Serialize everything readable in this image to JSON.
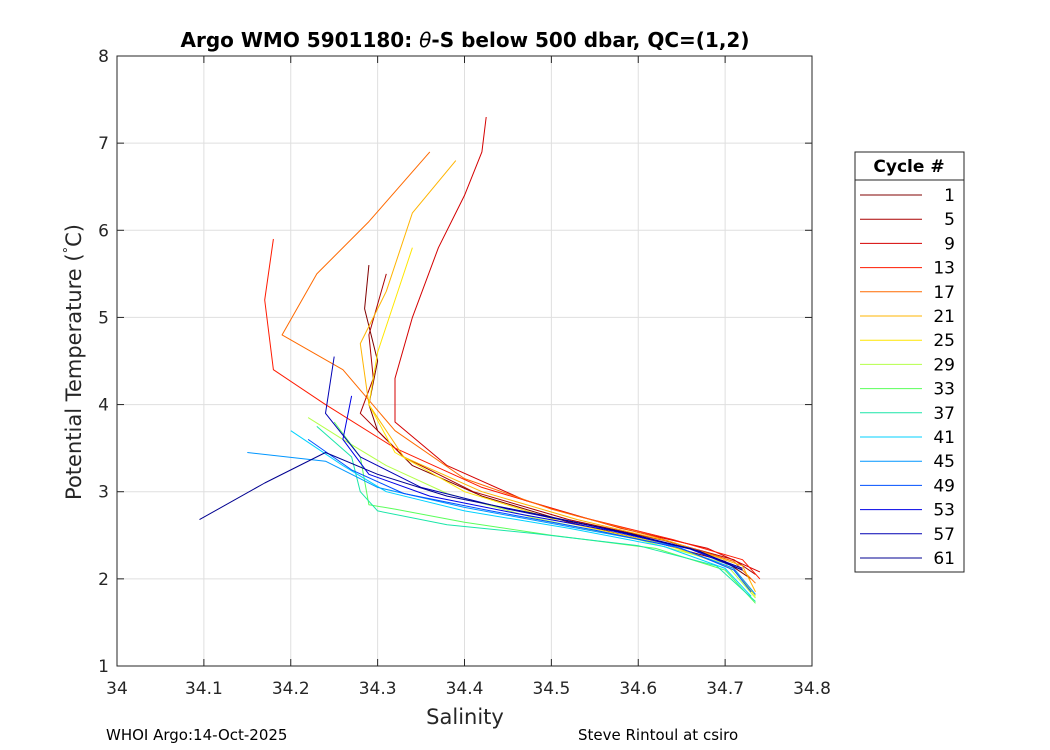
{
  "chart_data": {
    "type": "line",
    "title": "Argo WMO 5901180: θ-S below 500 dbar,  QC=(1,2)",
    "title_parts": {
      "prefix": "Argo WMO 5901180: ",
      "theta": "θ",
      "suffix": "-S below 500 dbar,  QC=(1,2)"
    },
    "xlabel": "Salinity",
    "ylabel_parts": {
      "main": "Potential Temperature (",
      "degree": "°",
      "unit": "C)"
    },
    "xlim": [
      34.0,
      34.8
    ],
    "ylim": [
      1,
      8
    ],
    "xticks": [
      "34",
      "34.1",
      "34.2",
      "34.3",
      "34.4",
      "34.5",
      "34.6",
      "34.7",
      "34.8"
    ],
    "yticks": [
      "1",
      "2",
      "3",
      "4",
      "5",
      "6",
      "7",
      "8"
    ],
    "grid": true,
    "legend": {
      "title": "Cycle #",
      "placement": "right-outside",
      "entries": [
        {
          "label": "1",
          "color": "#800000"
        },
        {
          "label": "5",
          "color": "#aa0000"
        },
        {
          "label": "9",
          "color": "#d40000"
        },
        {
          "label": "13",
          "color": "#ff1a00"
        },
        {
          "label": "17",
          "color": "#ff6a00"
        },
        {
          "label": "21",
          "color": "#ffb400"
        },
        {
          "label": "25",
          "color": "#ffe600"
        },
        {
          "label": "29",
          "color": "#b4ff4a"
        },
        {
          "label": "33",
          "color": "#5aff5a"
        },
        {
          "label": "37",
          "color": "#1ae6a8"
        },
        {
          "label": "41",
          "color": "#00d2ff"
        },
        {
          "label": "45",
          "color": "#0096ff"
        },
        {
          "label": "49",
          "color": "#0050ff"
        },
        {
          "label": "53",
          "color": "#0000e6"
        },
        {
          "label": "57",
          "color": "#0000b4"
        },
        {
          "label": "61",
          "color": "#000090"
        }
      ]
    },
    "series": [
      {
        "name": "1",
        "color": "#800000",
        "points": [
          [
            34.29,
            5.6
          ],
          [
            34.285,
            5.1
          ],
          [
            34.3,
            4.5
          ],
          [
            34.29,
            4.0
          ],
          [
            34.3,
            3.7
          ],
          [
            34.34,
            3.3
          ],
          [
            34.42,
            2.95
          ],
          [
            34.52,
            2.65
          ],
          [
            34.62,
            2.42
          ],
          [
            34.7,
            2.2
          ],
          [
            34.73,
            2.0
          ]
        ]
      },
      {
        "name": "5",
        "color": "#aa0000",
        "points": [
          [
            34.31,
            5.5
          ],
          [
            34.29,
            4.8
          ],
          [
            34.295,
            4.3
          ],
          [
            34.28,
            3.9
          ],
          [
            34.33,
            3.4
          ],
          [
            34.41,
            3.0
          ],
          [
            34.52,
            2.68
          ],
          [
            34.63,
            2.44
          ],
          [
            34.71,
            2.22
          ],
          [
            34.735,
            2.05
          ]
        ]
      },
      {
        "name": "9",
        "color": "#d40000",
        "points": [
          [
            34.425,
            7.3
          ],
          [
            34.42,
            6.9
          ],
          [
            34.4,
            6.4
          ],
          [
            34.37,
            5.8
          ],
          [
            34.34,
            5.0
          ],
          [
            34.32,
            4.3
          ],
          [
            34.32,
            3.8
          ],
          [
            34.38,
            3.3
          ],
          [
            34.47,
            2.9
          ],
          [
            34.58,
            2.58
          ],
          [
            34.68,
            2.35
          ],
          [
            34.74,
            2.08
          ]
        ]
      },
      {
        "name": "13",
        "color": "#ff1a00",
        "points": [
          [
            34.18,
            5.9
          ],
          [
            34.17,
            5.2
          ],
          [
            34.18,
            4.4
          ],
          [
            34.24,
            4.0
          ],
          [
            34.32,
            3.5
          ],
          [
            34.42,
            3.05
          ],
          [
            34.53,
            2.72
          ],
          [
            34.64,
            2.45
          ],
          [
            34.72,
            2.22
          ],
          [
            34.74,
            2.0
          ]
        ]
      },
      {
        "name": "17",
        "color": "#ff6a00",
        "points": [
          [
            34.36,
            6.9
          ],
          [
            34.29,
            6.1
          ],
          [
            34.23,
            5.5
          ],
          [
            34.19,
            4.8
          ],
          [
            34.26,
            4.4
          ],
          [
            34.32,
            3.7
          ],
          [
            34.4,
            3.15
          ],
          [
            34.5,
            2.8
          ],
          [
            34.62,
            2.48
          ],
          [
            34.71,
            2.2
          ],
          [
            34.735,
            1.95
          ]
        ]
      },
      {
        "name": "21",
        "color": "#ffb400",
        "points": [
          [
            34.39,
            6.8
          ],
          [
            34.34,
            6.2
          ],
          [
            34.31,
            5.3
          ],
          [
            34.28,
            4.7
          ],
          [
            34.29,
            4.0
          ],
          [
            34.33,
            3.4
          ],
          [
            34.42,
            3.0
          ],
          [
            34.53,
            2.68
          ],
          [
            34.64,
            2.42
          ],
          [
            34.72,
            2.15
          ],
          [
            34.735,
            1.85
          ]
        ]
      },
      {
        "name": "25",
        "color": "#ffe600",
        "points": [
          [
            34.34,
            5.8
          ],
          [
            34.32,
            5.2
          ],
          [
            34.3,
            4.6
          ],
          [
            34.29,
            4.0
          ],
          [
            34.32,
            3.45
          ],
          [
            34.4,
            3.0
          ],
          [
            34.51,
            2.66
          ],
          [
            34.63,
            2.4
          ],
          [
            34.71,
            2.12
          ],
          [
            34.735,
            1.8
          ]
        ]
      },
      {
        "name": "29",
        "color": "#b4ff4a",
        "points": [
          [
            34.22,
            3.85
          ],
          [
            34.26,
            3.6
          ],
          [
            34.31,
            3.3
          ],
          [
            34.38,
            2.98
          ],
          [
            34.48,
            2.7
          ],
          [
            34.6,
            2.45
          ],
          [
            34.7,
            2.18
          ],
          [
            34.735,
            1.78
          ]
        ]
      },
      {
        "name": "33",
        "color": "#5aff5a",
        "points": [
          [
            34.25,
            3.8
          ],
          [
            34.28,
            3.4
          ],
          [
            34.29,
            2.85
          ],
          [
            34.32,
            2.8
          ],
          [
            34.4,
            2.65
          ],
          [
            34.5,
            2.5
          ],
          [
            34.62,
            2.35
          ],
          [
            34.7,
            2.1
          ],
          [
            34.735,
            1.72
          ]
        ]
      },
      {
        "name": "37",
        "color": "#1ae6a8",
        "points": [
          [
            34.23,
            3.75
          ],
          [
            34.27,
            3.4
          ],
          [
            34.28,
            3.0
          ],
          [
            34.3,
            2.78
          ],
          [
            34.38,
            2.62
          ],
          [
            34.48,
            2.52
          ],
          [
            34.6,
            2.38
          ],
          [
            34.69,
            2.15
          ],
          [
            34.735,
            1.74
          ]
        ]
      },
      {
        "name": "41",
        "color": "#00d2ff",
        "points": [
          [
            34.2,
            3.7
          ],
          [
            34.26,
            3.3
          ],
          [
            34.31,
            3.0
          ],
          [
            34.4,
            2.78
          ],
          [
            34.52,
            2.58
          ],
          [
            34.63,
            2.37
          ],
          [
            34.7,
            2.12
          ],
          [
            34.73,
            1.8
          ]
        ]
      },
      {
        "name": "45",
        "color": "#0096ff",
        "points": [
          [
            34.15,
            3.45
          ],
          [
            34.24,
            3.35
          ],
          [
            34.3,
            3.05
          ],
          [
            34.4,
            2.82
          ],
          [
            34.52,
            2.6
          ],
          [
            34.64,
            2.38
          ],
          [
            34.71,
            2.12
          ],
          [
            34.735,
            1.82
          ]
        ]
      },
      {
        "name": "49",
        "color": "#0050ff",
        "points": [
          [
            34.22,
            3.6
          ],
          [
            34.27,
            3.25
          ],
          [
            34.33,
            2.98
          ],
          [
            34.43,
            2.78
          ],
          [
            34.55,
            2.56
          ],
          [
            34.65,
            2.35
          ],
          [
            34.71,
            2.1
          ],
          [
            34.73,
            1.85
          ]
        ]
      },
      {
        "name": "53",
        "color": "#0000e6",
        "points": [
          [
            34.27,
            4.1
          ],
          [
            34.26,
            3.6
          ],
          [
            34.29,
            3.2
          ],
          [
            34.36,
            2.95
          ],
          [
            34.46,
            2.75
          ],
          [
            34.57,
            2.55
          ],
          [
            34.66,
            2.34
          ],
          [
            34.72,
            2.1
          ]
        ]
      },
      {
        "name": "57",
        "color": "#0000b4",
        "points": [
          [
            34.25,
            4.55
          ],
          [
            34.24,
            3.9
          ],
          [
            34.28,
            3.4
          ],
          [
            34.35,
            3.05
          ],
          [
            34.45,
            2.8
          ],
          [
            34.56,
            2.58
          ],
          [
            34.66,
            2.35
          ],
          [
            34.72,
            2.12
          ]
        ]
      },
      {
        "name": "61",
        "color": "#000090",
        "points": [
          [
            34.095,
            2.68
          ],
          [
            34.17,
            3.1
          ],
          [
            34.24,
            3.45
          ],
          [
            34.3,
            3.2
          ],
          [
            34.38,
            2.95
          ],
          [
            34.48,
            2.75
          ],
          [
            34.59,
            2.52
          ],
          [
            34.67,
            2.32
          ],
          [
            34.72,
            2.1
          ]
        ]
      }
    ]
  },
  "footer": {
    "left": "WHOI Argo:14-Oct-2025",
    "right": "Steve Rintoul at csiro"
  }
}
